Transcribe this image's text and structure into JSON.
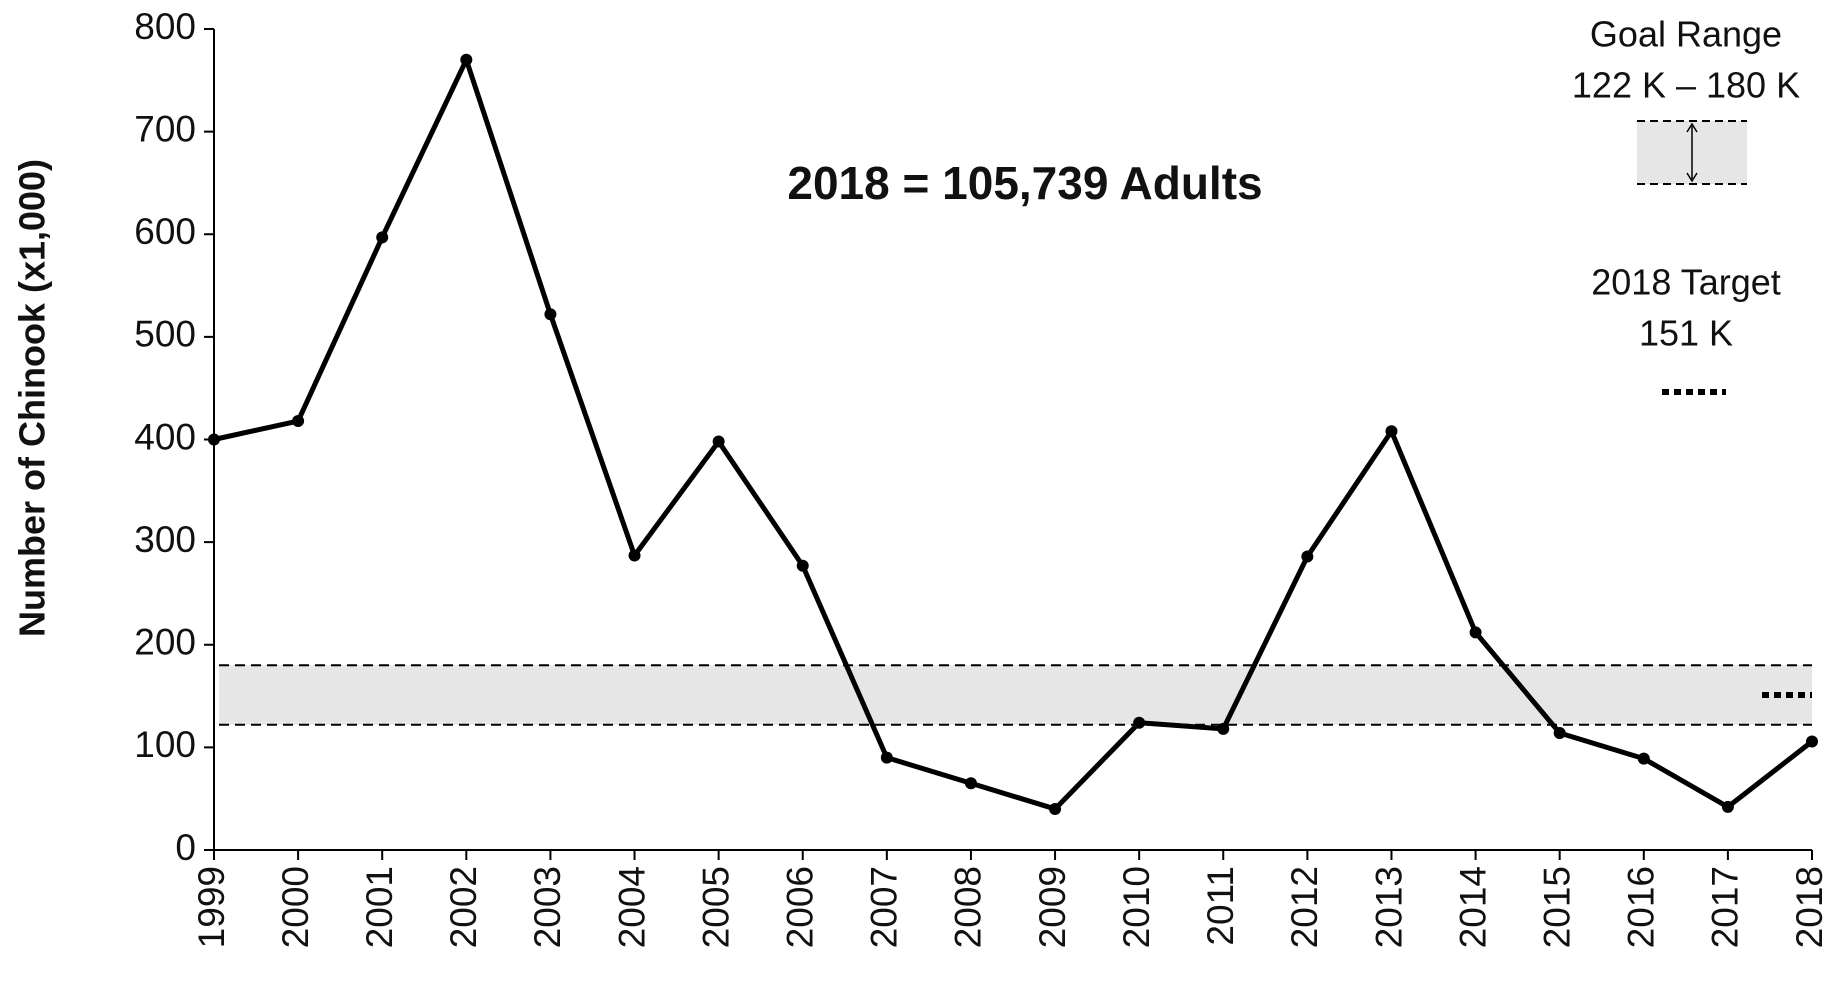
{
  "chart_data": {
    "type": "line",
    "ylabel": "Number of Chinook (x1,000)",
    "annotation": "2018 = 105,739 Adults",
    "categories": [
      "1999",
      "2000",
      "2001",
      "2002",
      "2003",
      "2004",
      "2005",
      "2006",
      "2007",
      "2008",
      "2009",
      "2010",
      "2011",
      "2012",
      "2013",
      "2014",
      "2015",
      "2016",
      "2017",
      "2018"
    ],
    "series": [
      {
        "name": "Chinook",
        "color": "#000000",
        "values": [
          400,
          418,
          597,
          770,
          522,
          287,
          398,
          277,
          90,
          65,
          40,
          124,
          118,
          286,
          408,
          212,
          114,
          89,
          42,
          105.739
        ]
      }
    ],
    "ylim": [
      0,
      800
    ],
    "yticks": [
      0,
      100,
      200,
      300,
      400,
      500,
      600,
      700,
      800
    ],
    "goal_range": {
      "title": "Goal Range",
      "label": "122 K – 180 K",
      "values": [
        122,
        180
      ],
      "color": "#e6e6e6"
    },
    "target": {
      "title": "2018 Target",
      "label": "151 K",
      "value": 151
    }
  }
}
